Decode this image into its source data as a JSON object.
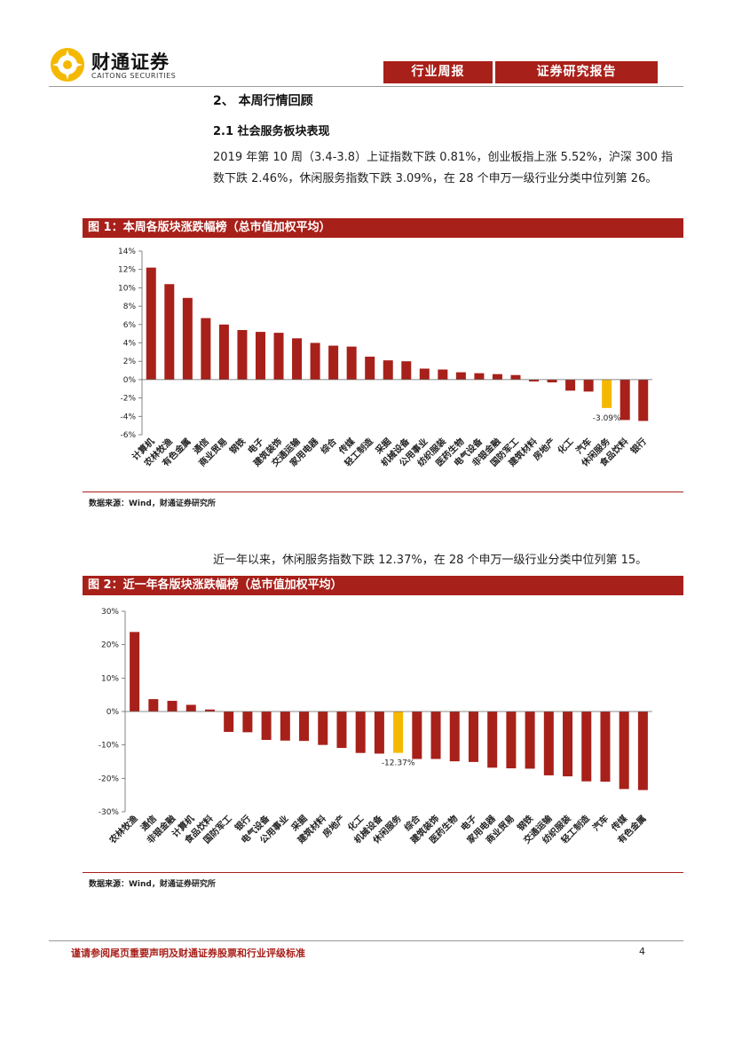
{
  "header": {
    "logo_cn": "财通证券",
    "logo_en": "CAITONG SECURITIES",
    "tag1": "行业周报",
    "tag2": "证券研究报告"
  },
  "section": {
    "heading": "2、 本周行情回顾",
    "subheading": "2.1  社会服务板块表现",
    "para1": "2019 年第 10 周（3.4-3.8）上证指数下跌 0.81%，创业板指上涨 5.52%，沪深 300 指数下跌 2.46%，休闲服务指数下跌 3.09%，在 28 个申万一级行业分类中位列第 26。",
    "para2": "近一年以来，休闲服务指数下跌 12.37%，在 28 个申万一级行业分类中位列第 15。"
  },
  "figures": [
    {
      "title": "图 1：本周各版块涨跌幅榜（总市值加权平均）",
      "source": "数据来源：Wind，财通证券研究所"
    },
    {
      "title": "图 2：近一年各版块涨跌幅榜（总市值加权平均）",
      "source": "数据来源：Wind，财通证券研究所"
    }
  ],
  "chart_data": [
    {
      "type": "bar",
      "title": "本周各版块涨跌幅榜（总市值加权平均）",
      "categories": [
        "计算机",
        "农林牧渔",
        "有色金属",
        "通信",
        "商业贸易",
        "钢铁",
        "电子",
        "建筑装饰",
        "交通运输",
        "家用电器",
        "综合",
        "传媒",
        "轻工制造",
        "采掘",
        "机械设备",
        "公用事业",
        "纺织服装",
        "医药生物",
        "电气设备",
        "非银金融",
        "国防军工",
        "建筑材料",
        "房地产",
        "化工",
        "汽车",
        "休闲服务",
        "食品饮料",
        "银行"
      ],
      "values": [
        12.2,
        10.4,
        8.9,
        6.7,
        6.0,
        5.4,
        5.2,
        5.1,
        4.5,
        4.0,
        3.7,
        3.6,
        2.5,
        2.1,
        2.0,
        1.2,
        1.1,
        0.8,
        0.7,
        0.6,
        0.5,
        -0.2,
        -0.3,
        -1.2,
        -1.3,
        -3.09,
        -4.4,
        -4.5
      ],
      "highlight": "休闲服务",
      "highlight_label": "-3.09%",
      "ylim": [
        -6,
        14
      ],
      "yticks": [
        "14%",
        "12%",
        "10%",
        "8%",
        "6%",
        "4%",
        "2%",
        "0%",
        "-2%",
        "-4%",
        "-6%"
      ],
      "bar_color": "#a8201a",
      "highlight_color": "#f5b800"
    },
    {
      "type": "bar",
      "title": "近一年各版块涨跌幅榜（总市值加权平均）",
      "categories": [
        "农林牧渔",
        "通信",
        "非银金融",
        "计算机",
        "食品饮料",
        "国防军工",
        "银行",
        "电气设备",
        "公用事业",
        "采掘",
        "建筑材料",
        "房地产",
        "化工",
        "机械设备",
        "休闲服务",
        "综合",
        "建筑装饰",
        "医药生物",
        "电子",
        "家用电器",
        "商业贸易",
        "钢铁",
        "交通运输",
        "纺织服装",
        "轻工制造",
        "汽车",
        "传媒",
        "有色金属"
      ],
      "values": [
        23.8,
        3.7,
        3.2,
        2.0,
        0.6,
        -6.1,
        -6.2,
        -8.5,
        -8.7,
        -8.8,
        -10.0,
        -10.9,
        -12.4,
        -12.6,
        -12.37,
        -14.2,
        -14.2,
        -14.9,
        -15.1,
        -16.8,
        -17.0,
        -17.1,
        -19.1,
        -19.4,
        -20.9,
        -21.0,
        -23.2,
        -23.5
      ],
      "highlight": "休闲服务",
      "highlight_label": "-12.37%",
      "ylim": [
        -30,
        30
      ],
      "yticks": [
        "30%",
        "20%",
        "10%",
        "0%",
        "-10%",
        "-20%",
        "-30%"
      ],
      "bar_color": "#a8201a",
      "highlight_color": "#f5b800"
    }
  ],
  "footer": {
    "disclaimer": "谨请参阅尾页重要声明及财通证券股票和行业评级标准",
    "page": "4"
  }
}
